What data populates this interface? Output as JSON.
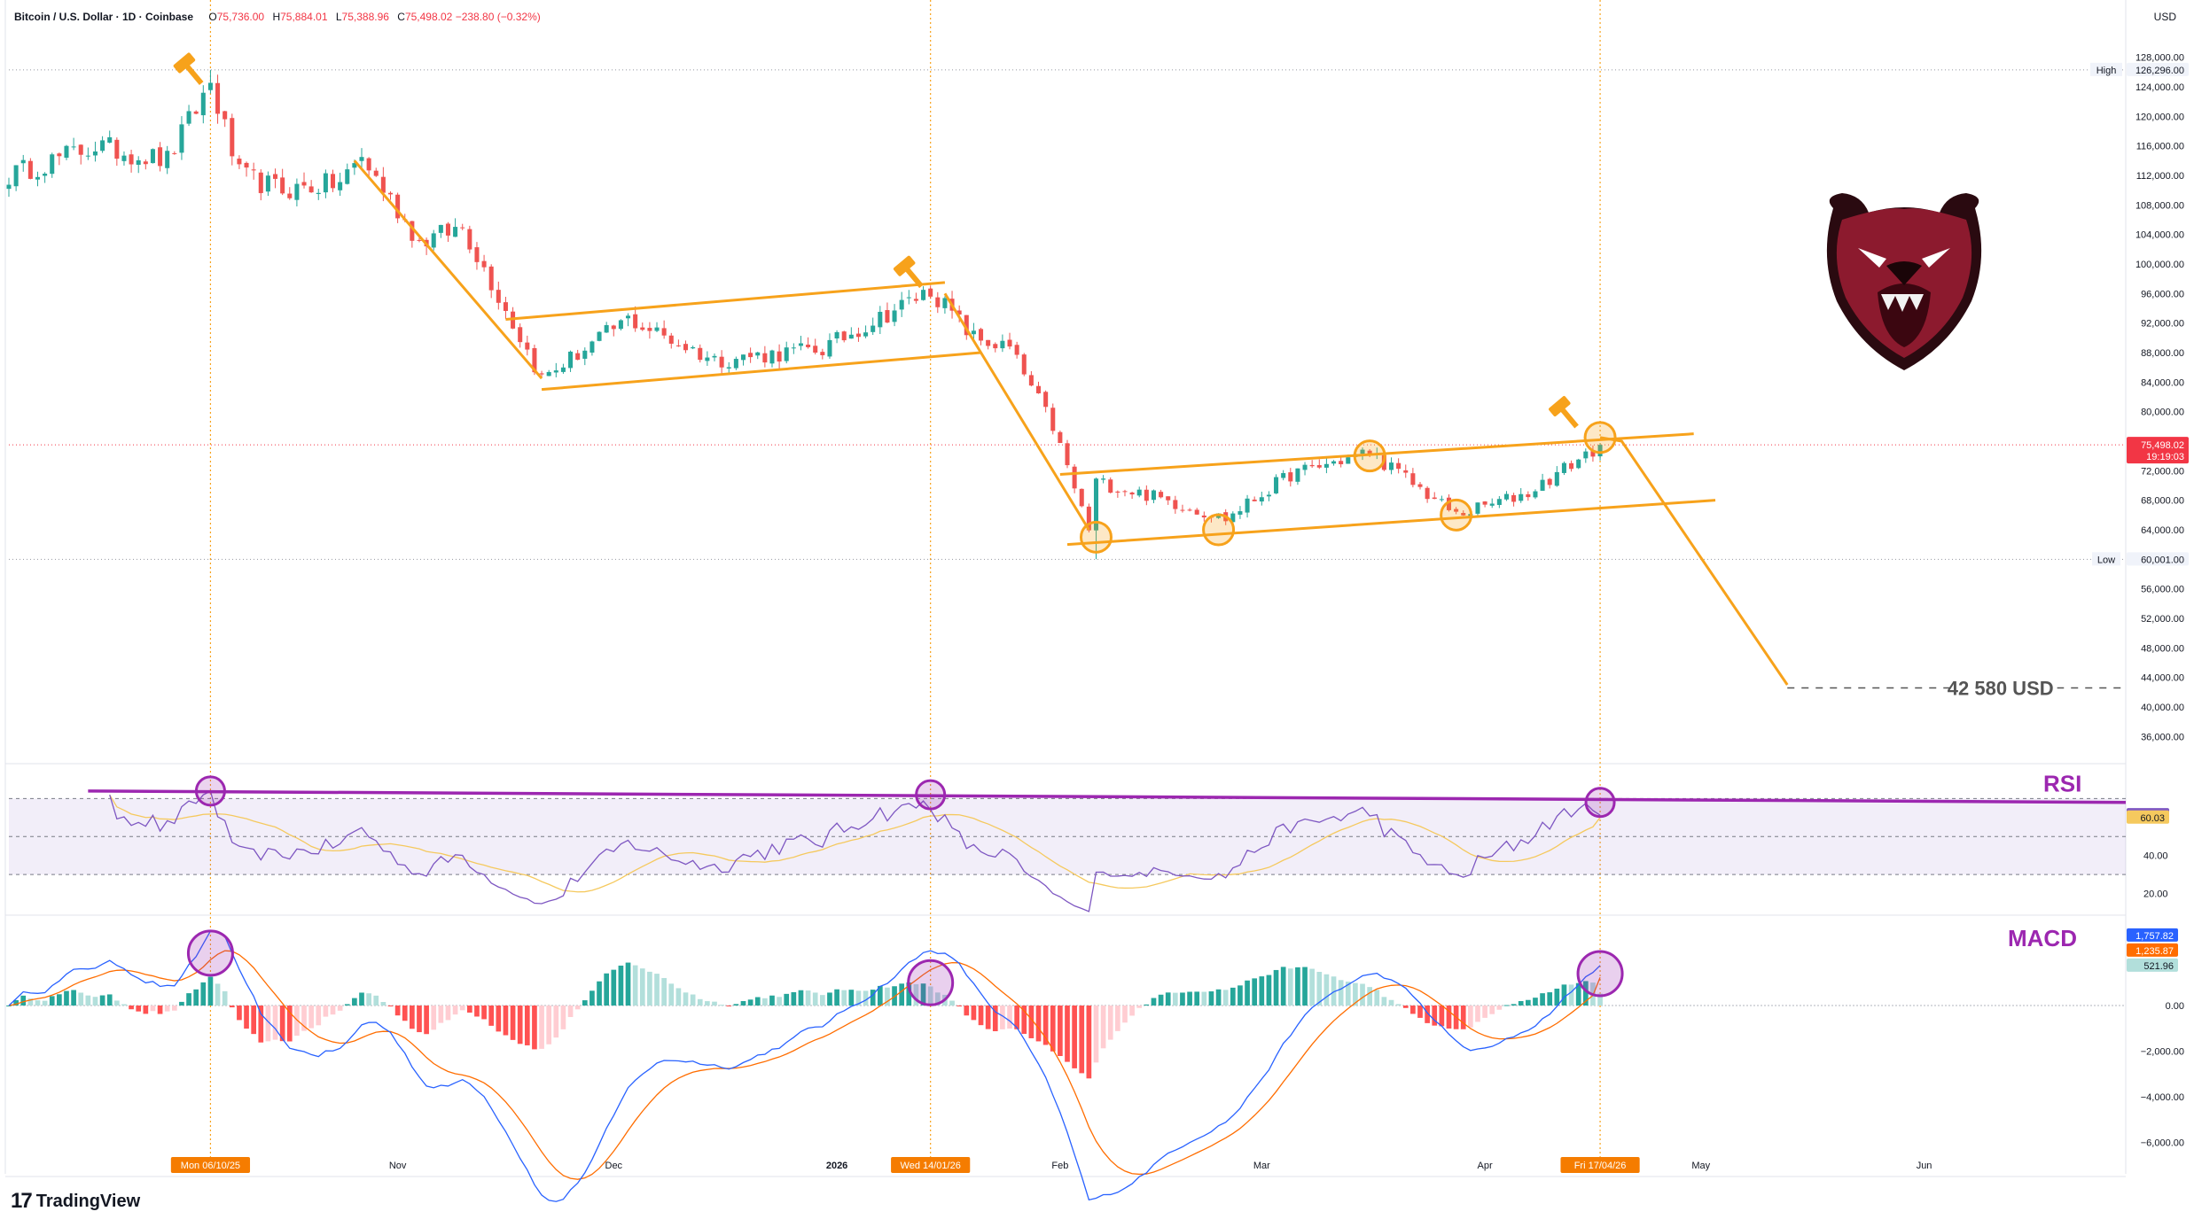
{
  "header": {
    "symbol": "Bitcoin / U.S. Dollar · 1D · Coinbase",
    "o_label": "O",
    "o": "75,736.00",
    "h_label": "H",
    "h": "75,884.01",
    "l_label": "L",
    "l": "75,388.96",
    "c_label": "C",
    "c": "75,498.02",
    "change": "−238.80 (−0.32%)"
  },
  "currency": "USD",
  "brand": "TradingView",
  "colors": {
    "up": "#26A69A",
    "down": "#EF5350",
    "orange": "#F7A21B",
    "purple": "#9C27B0",
    "rsi": "#7E57C2",
    "rsi_ma": "#F5C95E",
    "macd": "#2962FF",
    "signal": "#FF6D00"
  },
  "chart_data": [
    {
      "type": "candlestick",
      "title": "Bitcoin / U.S. Dollar",
      "y_ticks": [
        "128,000.00",
        "124,000.00",
        "120,000.00",
        "116,000.00",
        "112,000.00",
        "108,000.00",
        "104,000.00",
        "100,000.00",
        "96,000.00",
        "92,000.00",
        "88,000.00",
        "84,000.00",
        "80,000.00",
        "72,000.00",
        "68,000.00",
        "64,000.00",
        "56,000.00",
        "52,000.00",
        "48,000.00",
        "44,000.00",
        "40,000.00",
        "36,000.00"
      ],
      "y_tick_values": [
        128000,
        124000,
        120000,
        116000,
        112000,
        108000,
        104000,
        100000,
        96000,
        92000,
        88000,
        84000,
        80000,
        72000,
        68000,
        64000,
        56000,
        52000,
        48000,
        44000,
        40000,
        36000
      ],
      "ylim": [
        34000,
        130000
      ],
      "x_labels": [
        {
          "label": "Mon 06/10/25",
          "date": "2025-10-06",
          "highlight": true
        },
        {
          "label": "Nov",
          "date": "2025-11-01"
        },
        {
          "label": "Dec",
          "date": "2025-12-01"
        },
        {
          "label": "2026",
          "date": "2026-01-01",
          "bold": true
        },
        {
          "label": "Wed 14/01/26",
          "date": "2026-01-14",
          "highlight": true
        },
        {
          "label": "Feb",
          "date": "2026-02-01"
        },
        {
          "label": "Mar",
          "date": "2026-03-01"
        },
        {
          "label": "Apr",
          "date": "2026-04-01"
        },
        {
          "label": "Fri 17/04/26",
          "date": "2026-04-17",
          "highlight": true
        },
        {
          "label": "May",
          "date": "2026-05-01"
        },
        {
          "label": "Jun",
          "date": "2026-06-01"
        }
      ],
      "x_range": [
        "2025-09-08",
        "2026-06-29"
      ],
      "anchors": [
        {
          "date": "2025-09-08",
          "price": 112000
        },
        {
          "date": "2025-09-20",
          "price": 116000
        },
        {
          "date": "2025-09-30",
          "price": 114000
        },
        {
          "date": "2025-10-06",
          "price": 124500
        },
        {
          "date": "2025-10-10",
          "price": 112000
        },
        {
          "date": "2025-10-16",
          "price": 110000
        },
        {
          "date": "2025-10-24",
          "price": 111000
        },
        {
          "date": "2025-10-27",
          "price": 114500
        },
        {
          "date": "2025-11-04",
          "price": 103000
        },
        {
          "date": "2025-11-10",
          "price": 105000
        },
        {
          "date": "2025-11-21",
          "price": 84500
        },
        {
          "date": "2025-12-03",
          "price": 92500
        },
        {
          "date": "2025-12-15",
          "price": 87000
        },
        {
          "date": "2025-12-30",
          "price": 88500
        },
        {
          "date": "2026-01-14",
          "price": 96500
        },
        {
          "date": "2026-01-20",
          "price": 90000
        },
        {
          "date": "2026-01-25",
          "price": 88500
        },
        {
          "date": "2026-01-31",
          "price": 78000
        },
        {
          "date": "2026-02-05",
          "price": 64000
        },
        {
          "date": "2026-02-06",
          "price": 70500
        },
        {
          "date": "2026-02-14",
          "price": 68500
        },
        {
          "date": "2026-02-24",
          "price": 65500
        },
        {
          "date": "2026-03-05",
          "price": 71500
        },
        {
          "date": "2026-03-16",
          "price": 74500
        },
        {
          "date": "2026-03-28",
          "price": 66000
        },
        {
          "date": "2026-04-07",
          "price": 69000
        },
        {
          "date": "2026-04-17",
          "price": 75500
        }
      ],
      "high_label": "High",
      "high_value": "126,296.00",
      "high_price": 126296,
      "high_date": "2025-10-06",
      "low_label": "Low",
      "low_value": "60,001.00",
      "low_price": 60001,
      "low_date": "2026-02-06",
      "last_price": 75498.02,
      "last_label": "75,498.02",
      "countdown": "19:19:03",
      "target_label": "42 580 USD",
      "target_price": 42580,
      "drawings": {
        "down_move_1": [
          [
            "2025-10-26",
            114000
          ],
          [
            "2025-11-21",
            84500
          ]
        ],
        "channel_1_upper": [
          [
            "2025-11-16",
            92500
          ],
          [
            "2026-01-16",
            97500
          ]
        ],
        "channel_1_lower": [
          [
            "2025-11-21",
            83000
          ],
          [
            "2026-01-21",
            88000
          ]
        ],
        "down_move_2": [
          [
            "2026-01-16",
            96000
          ],
          [
            "2026-02-05",
            64000
          ]
        ],
        "channel_2_upper": [
          [
            "2026-02-01",
            71500
          ],
          [
            "2026-04-30",
            77000
          ]
        ],
        "channel_2_lower": [
          [
            "2026-02-02",
            62000
          ],
          [
            "2026-05-03",
            68000
          ]
        ],
        "projection": [
          [
            "2026-04-17",
            76500
          ],
          [
            "2026-04-20",
            76000
          ],
          [
            "2026-05-13",
            43000
          ]
        ],
        "target_line": [
          [
            "2026-05-13",
            42580
          ],
          [
            "2026-06-29",
            42580
          ]
        ],
        "circles": [
          [
            "2026-02-06",
            63000
          ],
          [
            "2026-02-23",
            64000
          ],
          [
            "2026-03-16",
            74000
          ],
          [
            "2026-03-28",
            66000
          ],
          [
            "2026-04-17",
            76500
          ]
        ],
        "hammers": [
          [
            "2025-10-03",
            126500
          ],
          [
            "2026-01-11",
            99000
          ],
          [
            "2026-04-12",
            80000
          ]
        ]
      },
      "vlines": [
        "2025-10-06",
        "2026-01-14",
        "2026-04-17"
      ]
    },
    {
      "type": "line",
      "title": "RSI",
      "ylim": [
        10,
        80
      ],
      "y_ticks": [
        "40.00",
        "20.00"
      ],
      "y_tick_values": [
        40,
        20
      ],
      "bands": [
        70,
        50,
        30
      ],
      "last_rsi": 61.26,
      "last_rsi_label": "61.26",
      "last_ma": 60.03,
      "last_ma_label": "60.03",
      "trendline": [
        [
          "2025-09-19",
          74
        ],
        [
          "2026-06-29",
          68
        ]
      ],
      "circles": [
        [
          "2025-10-06",
          74
        ],
        [
          "2026-01-14",
          72
        ],
        [
          "2026-04-17",
          68
        ]
      ]
    },
    {
      "type": "bar",
      "title": "MACD",
      "ylim": [
        -7000,
        3500
      ],
      "y_ticks": [
        "0.00",
        "−2,000.00",
        "−4,000.00",
        "−6,000.00"
      ],
      "y_tick_values": [
        0,
        -2000,
        -4000,
        -6000
      ],
      "last_macd": 1757.82,
      "last_macd_label": "1,757.82",
      "last_signal": 1235.87,
      "last_signal_label": "1,235.87",
      "last_hist": 521.96,
      "last_hist_label": "521.96",
      "circles": [
        [
          "2025-10-06",
          2300
        ],
        [
          "2026-01-14",
          1000
        ],
        [
          "2026-04-17",
          1400
        ]
      ]
    }
  ]
}
